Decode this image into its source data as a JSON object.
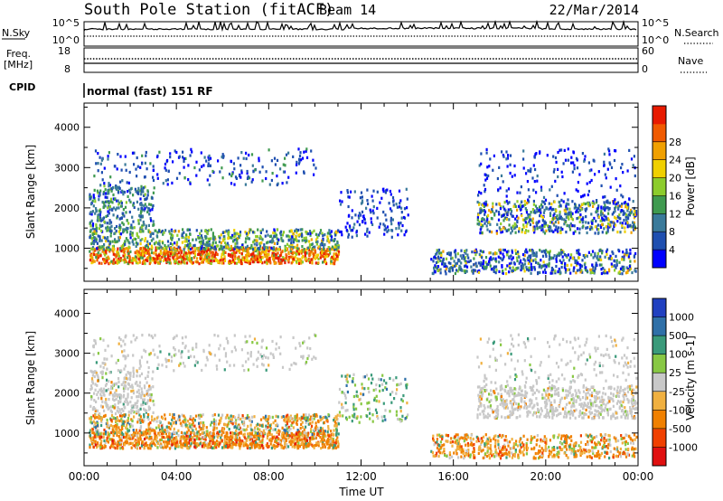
{
  "title": {
    "station": "South Pole Station (fitACF)",
    "beam": "Beam 14",
    "date": "22/Mar/2014"
  },
  "top_panels": {
    "nsky_label": "N.Sky",
    "nsky_ticks": [
      "10^5",
      "10^0"
    ],
    "nsearch_label": "N.Search",
    "freq_label_1": "Freq.",
    "freq_label_2": "[MHz]",
    "freq_ticks": [
      "18",
      "8"
    ],
    "nave_label": "Nave",
    "nave_ticks": [
      "60",
      "0"
    ],
    "cpid_label": "CPID",
    "cpid_value": "normal (fast) 151 RF"
  },
  "chart_data": [
    {
      "type": "heatmap",
      "name": "power",
      "xlabel": "",
      "ylabel": "Slant Range [km]",
      "xlim": [
        0,
        24
      ],
      "ylim": [
        180,
        4600
      ],
      "y_ticks": [
        1000,
        2000,
        3000,
        4000
      ],
      "colorbar": {
        "label": "Power [dB]",
        "ticks": [
          "4",
          "8",
          "12",
          "16",
          "20",
          "24",
          "28"
        ],
        "colors": [
          "#0000ff",
          "#1f4fb0",
          "#3a7a9a",
          "#3f9a4f",
          "#8ccc2c",
          "#f0d000",
          "#f0a000",
          "#f05a00",
          "#e81a00"
        ]
      }
    },
    {
      "type": "heatmap",
      "name": "velocity",
      "xlabel": "Time UT",
      "ylabel": "Slant Range [km]",
      "xlim": [
        0,
        24
      ],
      "ylim": [
        180,
        4600
      ],
      "x_ticks": [
        "00:00",
        "04:00",
        "08:00",
        "12:00",
        "16:00",
        "20:00",
        "00:00"
      ],
      "y_ticks": [
        1000,
        2000,
        3000,
        4000
      ],
      "colorbar": {
        "label": "Velocity [m s-1]",
        "ticks": [
          "1000",
          "500",
          "100",
          "25",
          "-25",
          "-100",
          "-500",
          "-1000"
        ],
        "colors": [
          "#2040c0",
          "#2f70a8",
          "#3a9a7a",
          "#88c844",
          "#c8c8c8",
          "#f0b040",
          "#f08000",
          "#f04000",
          "#e01010"
        ]
      }
    }
  ]
}
